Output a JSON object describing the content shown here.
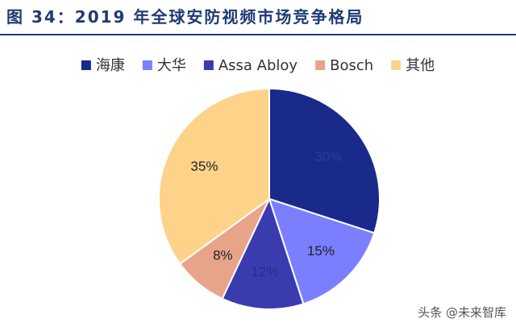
{
  "figure": {
    "title": "图 34：2019 年全球安防视频市场竞争格局"
  },
  "chart_data": {
    "type": "pie",
    "title": "",
    "slices": [
      {
        "name": "海康",
        "value": 30,
        "label": "30%",
        "color": "#1a2a8a",
        "label_color": "#2a3a9a"
      },
      {
        "name": "大华",
        "value": 15,
        "label": "15%",
        "color": "#7b7fff",
        "label_color": "#222222"
      },
      {
        "name": "Assa Abloy",
        "value": 12,
        "label": "12%",
        "color": "#3b3bb0",
        "label_color": "#2a2a8a"
      },
      {
        "name": "Bosch",
        "value": 8,
        "label": "8%",
        "color": "#e8a488",
        "label_color": "#222222"
      },
      {
        "name": "其他",
        "value": 35,
        "label": "35%",
        "color": "#fcd389",
        "label_color": "#222222"
      }
    ],
    "start_angle_deg": 0,
    "direction": "clockwise",
    "legend_position": "top"
  },
  "watermark": "头条 @未来智库"
}
